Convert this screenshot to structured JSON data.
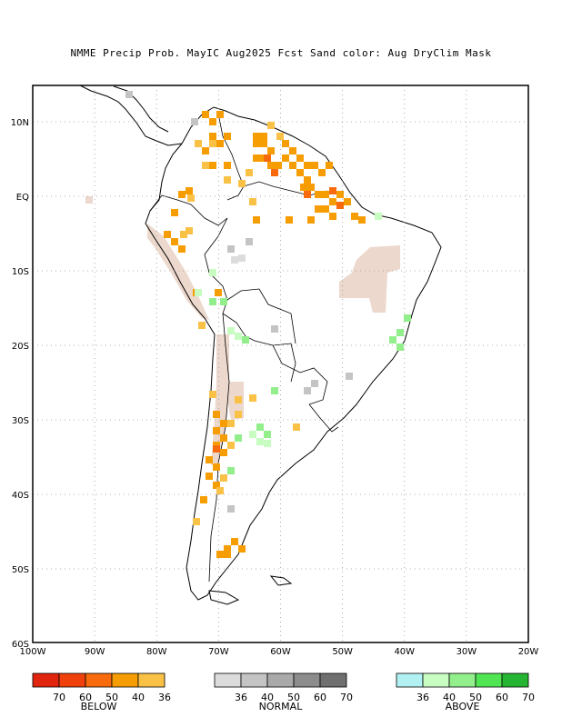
{
  "title": "NMME Precip Prob. MayIC  Aug2025 Fcst  Sand color: Aug DryClim Mask",
  "axes": {
    "lon_ticks": [
      "100W",
      "90W",
      "80W",
      "70W",
      "60W",
      "50W",
      "40W",
      "30W",
      "20W"
    ],
    "lat_ticks": [
      "10N",
      "EQ",
      "10S",
      "20S",
      "30S",
      "40S",
      "50S",
      "60S"
    ],
    "lon_range": [
      -100,
      -20
    ],
    "lat_range": [
      -60,
      15
    ],
    "grid": true
  },
  "colors": {
    "sand": "#ecd8cc",
    "below": [
      "#e0240e",
      "#f0400b",
      "#f86a0b",
      "#f79d04",
      "#f9c146"
    ],
    "normal": [
      "#dcdcdc",
      "#c4c4c4",
      "#a9a9a9",
      "#8c8c8c",
      "#6f6f6f"
    ],
    "above": [
      "#b2f1f2",
      "#c8fdc2",
      "#92ef8c",
      "#4fe553",
      "#26b533"
    ]
  },
  "legend": {
    "below": {
      "title": "BELOW",
      "ticks": [
        "70",
        "60",
        "50",
        "40",
        "36"
      ]
    },
    "normal": {
      "title": "NORMAL",
      "ticks": [
        "36",
        "40",
        "50",
        "60",
        "70"
      ]
    },
    "above": {
      "title": "ABOVE",
      "ticks": [
        "36",
        "40",
        "50",
        "60",
        "70"
      ]
    }
  }
}
